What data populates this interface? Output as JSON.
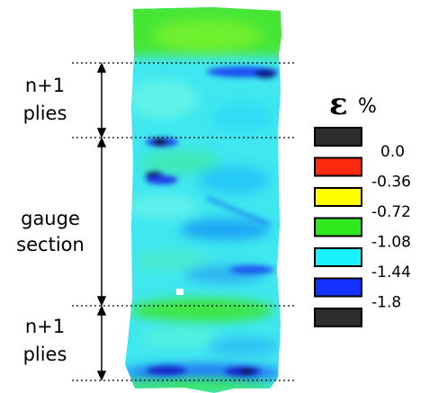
{
  "regions": [
    {
      "lines": [
        "n+1",
        "plies"
      ]
    },
    {
      "lines": [
        "gauge",
        "section"
      ]
    },
    {
      "lines": [
        "n+1",
        "plies"
      ]
    }
  ],
  "legend": {
    "symbol": "ε",
    "unit": "%",
    "swatch_colors": [
      "#2d2d2d",
      "#ff2a10",
      "#ffff00",
      "#2ee81e",
      "#19f2ff",
      "#1432ff",
      "#2d2d2d"
    ],
    "tick_labels": [
      "0.0",
      "-0.36",
      "-0.72",
      "-1.08",
      "-1.44",
      "-1.8"
    ]
  },
  "strain_map_colors": {
    "green": "#3de83a",
    "cyan": "#2fe7f2",
    "light_cyan": "#52f0ec",
    "blue": "#1f7cff",
    "dark_blue": "#1230d8",
    "black": "#111111"
  }
}
